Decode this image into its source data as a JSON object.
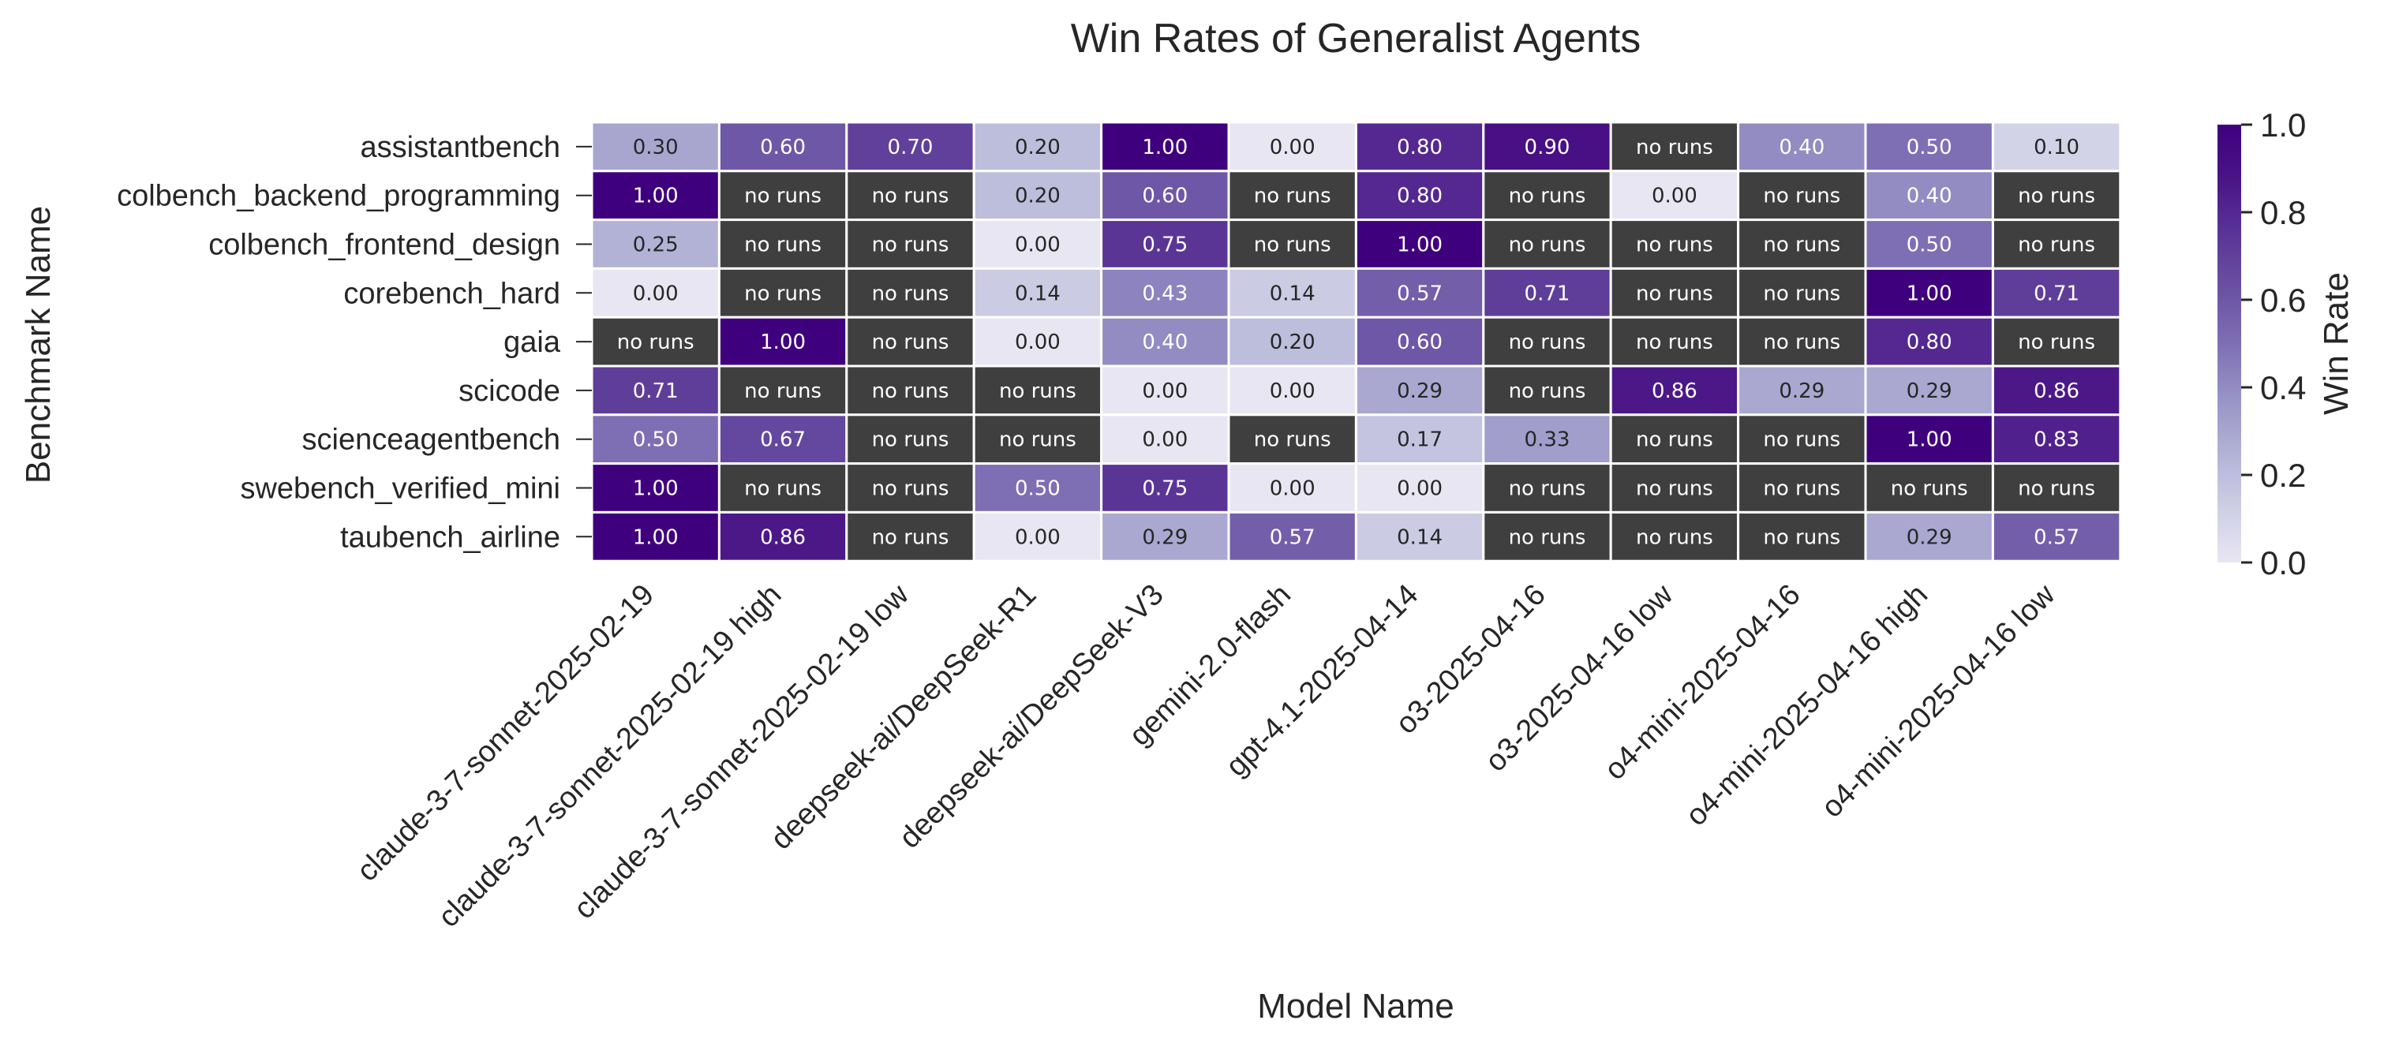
{
  "chart_data": {
    "type": "heatmap",
    "title": "Win Rates of Generalist Agents",
    "xlabel": "Model Name",
    "ylabel": "Benchmark Name",
    "colorbar_label": "Win Rate",
    "colorbar_ticks": [
      "0.0",
      "0.2",
      "0.4",
      "0.6",
      "0.8",
      "1.0"
    ],
    "vmin": 0,
    "vmax": 1,
    "missing_label": "no runs",
    "missing_color": "#3f3f3f",
    "colormap": [
      "#e8e6f2",
      "#cecee5",
      "#b2b2d6",
      "#9893c5",
      "#7e6fb4",
      "#6a51a3",
      "#5a3596",
      "#4a1486",
      "#3f007d"
    ],
    "x": [
      "claude-3-7-sonnet-2025-02-19",
      "claude-3-7-sonnet-2025-02-19 high",
      "claude-3-7-sonnet-2025-02-19 low",
      "deepseek-ai/DeepSeek-R1",
      "deepseek-ai/DeepSeek-V3",
      "gemini-2.0-flash",
      "gpt-4.1-2025-04-14",
      "o3-2025-04-16",
      "o3-2025-04-16 low",
      "o4-mini-2025-04-16",
      "o4-mini-2025-04-16 high",
      "o4-mini-2025-04-16 low"
    ],
    "y": [
      "assistantbench",
      "colbench_backend_programming",
      "colbench_frontend_design",
      "corebench_hard",
      "gaia",
      "scicode",
      "scienceagentbench",
      "swebench_verified_mini",
      "taubench_airline"
    ],
    "values": [
      [
        0.3,
        0.6,
        0.7,
        0.2,
        1.0,
        0.0,
        0.8,
        0.9,
        null,
        0.4,
        0.5,
        0.1
      ],
      [
        1.0,
        null,
        null,
        0.2,
        0.6,
        null,
        0.8,
        null,
        0.0,
        null,
        0.4,
        null
      ],
      [
        0.25,
        null,
        null,
        0.0,
        0.75,
        null,
        1.0,
        null,
        null,
        null,
        0.5,
        null
      ],
      [
        0.0,
        null,
        null,
        0.14,
        0.43,
        0.14,
        0.57,
        0.71,
        null,
        null,
        1.0,
        0.71
      ],
      [
        null,
        1.0,
        null,
        0.0,
        0.4,
        0.2,
        0.6,
        null,
        null,
        null,
        0.8,
        null
      ],
      [
        0.71,
        null,
        null,
        null,
        0.0,
        0.0,
        0.29,
        null,
        0.86,
        0.29,
        0.29,
        0.86
      ],
      [
        0.5,
        0.67,
        null,
        null,
        0.0,
        null,
        0.17,
        0.33,
        null,
        null,
        1.0,
        0.83
      ],
      [
        1.0,
        null,
        null,
        0.5,
        0.75,
        0.0,
        0.0,
        null,
        null,
        null,
        null,
        null
      ],
      [
        1.0,
        0.86,
        null,
        0.0,
        0.29,
        0.57,
        0.14,
        null,
        null,
        null,
        0.29,
        0.57
      ]
    ]
  }
}
